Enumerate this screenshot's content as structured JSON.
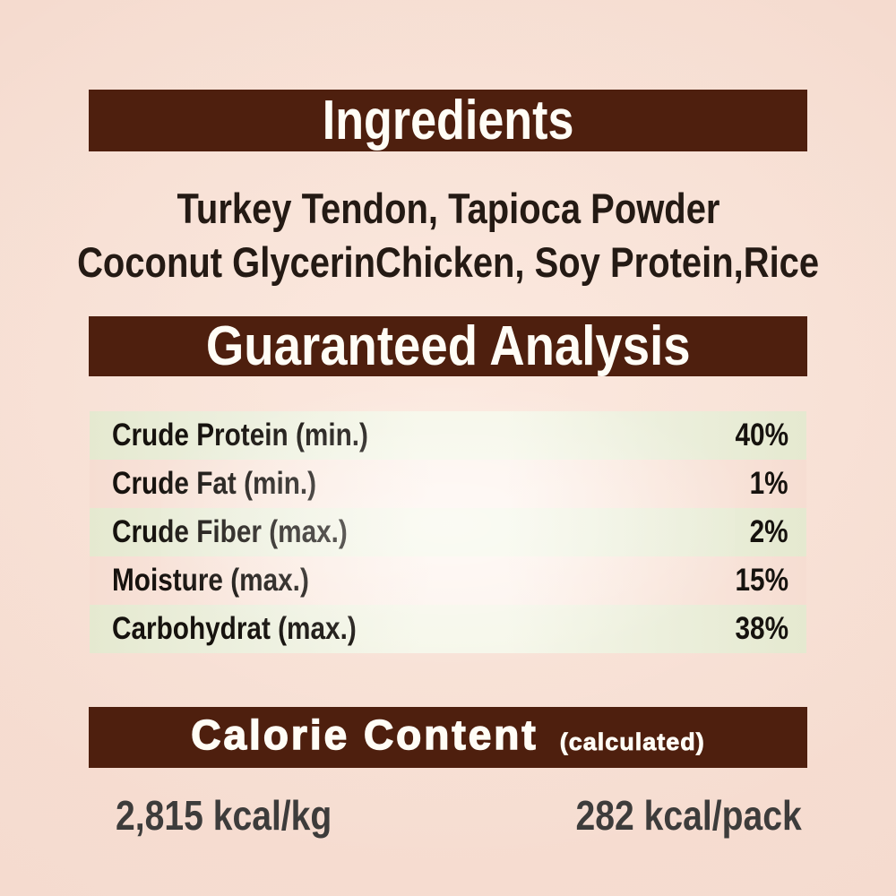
{
  "label": {
    "ingredients": {
      "title": "Ingredients",
      "lines": {
        "line1": "Turkey Tendon, Tapioca Powder",
        "line2": "Coconut GlycerinChicken, Soy Protein,Rice"
      }
    },
    "guaranteed_analysis": {
      "title": "Guaranteed Analysis",
      "rows": [
        {
          "label": "Crude Protein (min.)",
          "value": "40%"
        },
        {
          "label": "Crude Fat (min.)",
          "value": "1%"
        },
        {
          "label": "Crude Fiber (max.)",
          "value": "2%"
        },
        {
          "label": "Moisture (max.)",
          "value": "15%"
        },
        {
          "label": "Carbohydrat (max.)",
          "value": "38%"
        }
      ]
    },
    "calorie_content": {
      "title": "Calorie Content",
      "qualifier": "(calculated)",
      "per_kg": "2,815 kcal/kg",
      "per_pack": "282 kcal/pack"
    },
    "colors": {
      "bar_brown": "#4e1f0e",
      "background_pink": "#f5dbcf",
      "row_green": "#e8ecd6",
      "row_pink_highlight": "#fdf4ee",
      "header_text": "#fffdf6",
      "body_text": "#241a14",
      "calorie_value_text": "#3d3c3b"
    }
  }
}
